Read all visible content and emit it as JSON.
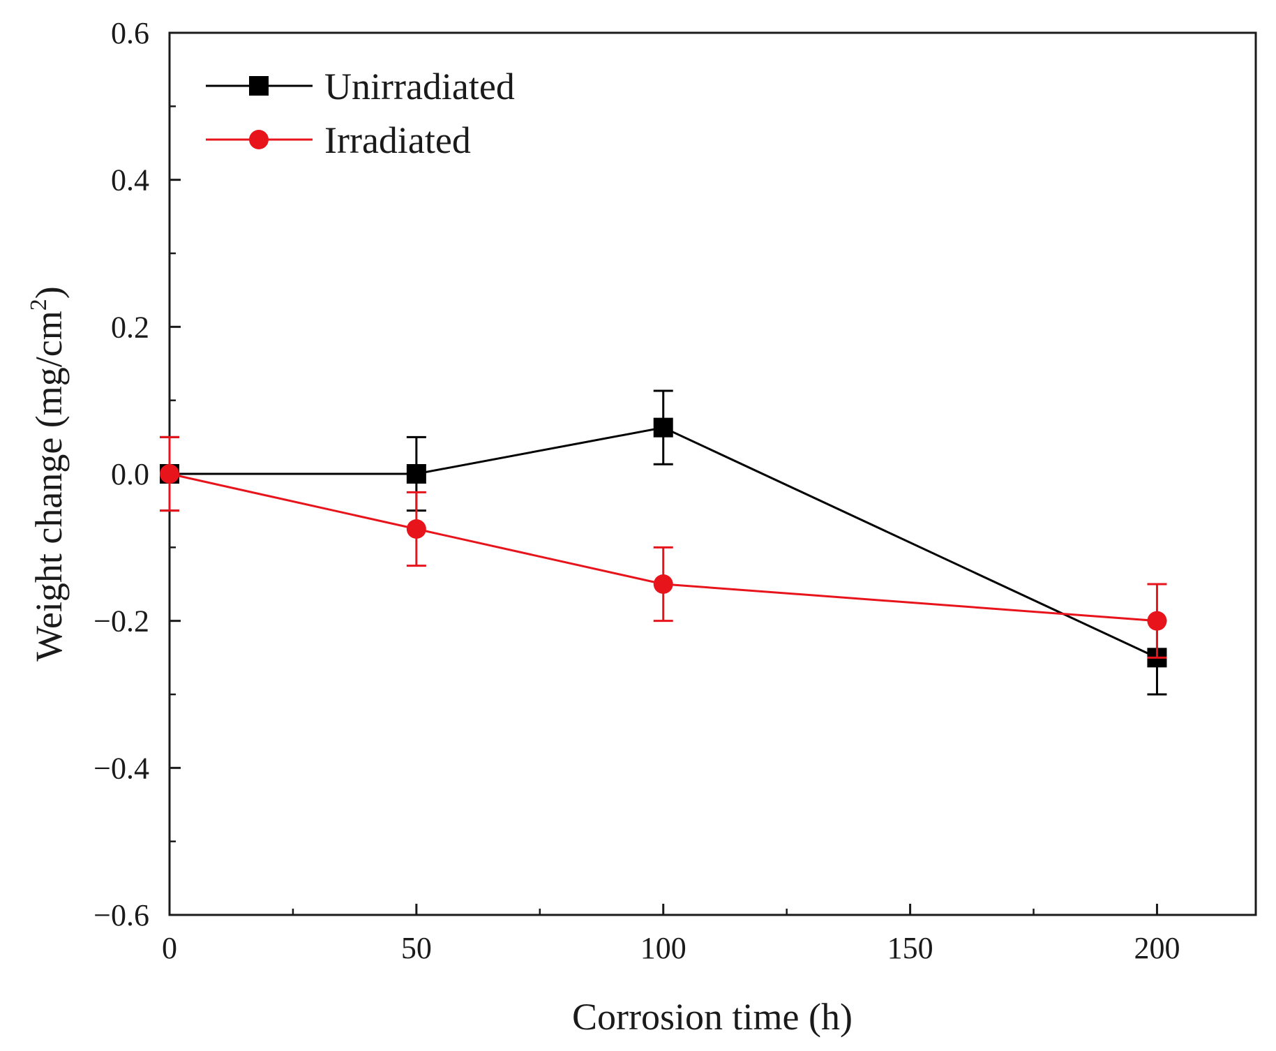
{
  "chart_data": {
    "type": "line",
    "title": "",
    "xlabel": "Corrosion time (h)",
    "ylabel_main": "Weight change (mg/cm",
    "ylabel_sup": "2",
    "ylabel_end": ")",
    "xlim": [
      0,
      220
    ],
    "ylim": [
      -0.6,
      0.6
    ],
    "x_ticks": [
      0,
      50,
      100,
      150,
      200
    ],
    "x_tick_labels": [
      "0",
      "50",
      "100",
      "150",
      "200"
    ],
    "x_minor_ticks": [
      25,
      75,
      125,
      175
    ],
    "y_ticks": [
      -0.6,
      -0.4,
      -0.2,
      0.0,
      0.2,
      0.4,
      0.6
    ],
    "y_tick_labels": [
      "−0.6",
      "−0.4",
      "−0.2",
      "0.0",
      "0.2",
      "0.4",
      "0.6"
    ],
    "y_minor_ticks": [
      -0.5,
      -0.3,
      -0.1,
      0.1,
      0.3,
      0.5
    ],
    "grid": false,
    "legend_position": "top-left",
    "series": [
      {
        "name": "Unirradiated",
        "color": "#000000",
        "marker": "square",
        "x": [
          0,
          50,
          100,
          200
        ],
        "y": [
          0.0,
          0.0,
          0.063,
          -0.25
        ],
        "error": [
          0.05,
          0.05,
          0.05,
          0.05
        ]
      },
      {
        "name": "Irradiated",
        "color": "#e8141c",
        "marker": "circle",
        "x": [
          0,
          50,
          100,
          200
        ],
        "y": [
          0.0,
          -0.075,
          -0.15,
          -0.2
        ],
        "error": [
          0.05,
          0.05,
          0.05,
          0.05
        ]
      }
    ]
  }
}
